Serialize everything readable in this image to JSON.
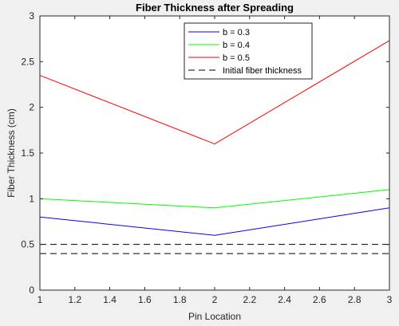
{
  "chart_data": {
    "type": "line",
    "title": "Fiber Thickness after Spreading",
    "xlabel": "Pin Location",
    "ylabel": "Fiber Thickness (cm)",
    "xlim": [
      1,
      3
    ],
    "ylim": [
      0,
      3
    ],
    "x_ticks": [
      "1",
      "1.2",
      "1.4",
      "1.6",
      "1.8",
      "2",
      "2.2",
      "2.4",
      "2.6",
      "2.8",
      "3"
    ],
    "y_ticks": [
      "0",
      "0.5",
      "1",
      "1.5",
      "2",
      "2.5",
      "3"
    ],
    "grid": false,
    "legend_position": "top-center",
    "series": [
      {
        "name": "b = 0.3",
        "color": "#0000ff",
        "x": [
          1,
          2,
          3
        ],
        "y": [
          0.8,
          0.6,
          0.9
        ]
      },
      {
        "name": "b = 0.4",
        "color": "#00ff00",
        "x": [
          1,
          2,
          3
        ],
        "y": [
          1.0,
          0.9,
          1.1
        ]
      },
      {
        "name": "b = 0.5",
        "color": "#ff0000",
        "x": [
          1,
          2,
          3
        ],
        "y": [
          2.35,
          1.6,
          2.73
        ]
      },
      {
        "name": "Initial fiber thickness",
        "color": "#000000",
        "dashed": true,
        "x": [
          1,
          3
        ],
        "y": [
          0.5,
          0.5
        ],
        "y2": [
          0.4,
          0.4
        ]
      }
    ]
  }
}
